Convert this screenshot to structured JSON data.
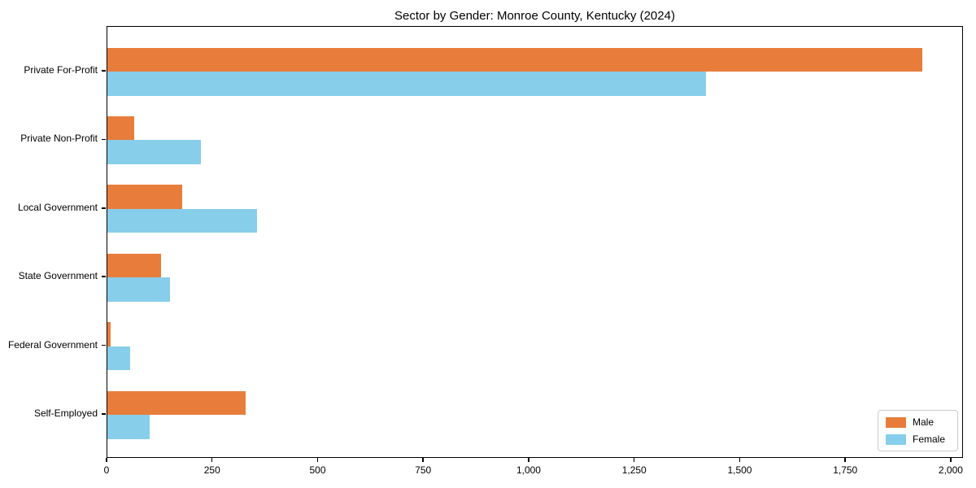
{
  "chart_data": {
    "type": "bar",
    "orientation": "horizontal",
    "title": "Sector by Gender: Monroe County, Kentucky (2024)",
    "categories": [
      "Private For-Profit",
      "Private Non-Profit",
      "Local Government",
      "State Government",
      "Federal Government",
      "Self-Employed"
    ],
    "series": [
      {
        "name": "Male",
        "color": "#e87d3b",
        "values": [
          1930,
          64,
          177,
          127,
          8,
          328
        ]
      },
      {
        "name": "Female",
        "color": "#87ceeb",
        "values": [
          1418,
          222,
          354,
          148,
          54,
          100
        ]
      }
    ],
    "xlabel": "",
    "ylabel": "",
    "xlim": [
      0,
      2029
    ],
    "xticks": [
      0,
      250,
      500,
      750,
      1000,
      1250,
      1500,
      1750,
      2000
    ],
    "xtick_labels": [
      "0",
      "250",
      "500",
      "750",
      "1,000",
      "1,250",
      "1,500",
      "1,750",
      "2,000"
    ],
    "legend_position": "lower right",
    "grid": false,
    "frame": true
  }
}
